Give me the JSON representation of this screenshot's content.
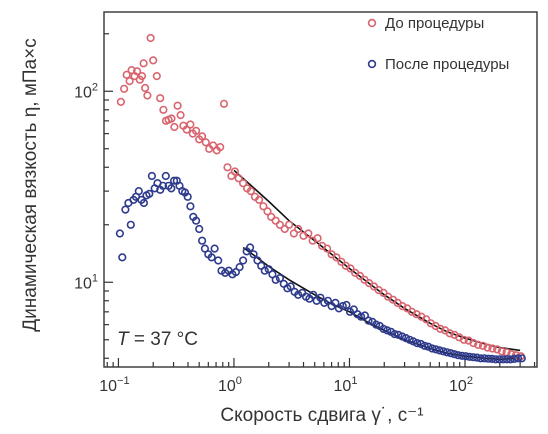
{
  "chart_data": {
    "type": "scatter",
    "x_scale": "log",
    "y_scale": "log",
    "xlim": [
      0.075,
      420
    ],
    "ylim": [
      3.6,
      260
    ],
    "x_ticks": [
      {
        "value": 0.1,
        "base": "10",
        "exp": "−1"
      },
      {
        "value": 1,
        "base": "10",
        "exp": "0"
      },
      {
        "value": 10,
        "base": "10",
        "exp": "1"
      },
      {
        "value": 100,
        "base": "10",
        "exp": "2"
      }
    ],
    "y_ticks": [
      {
        "value": 10,
        "base": "10",
        "exp": "1"
      },
      {
        "value": 100,
        "base": "10",
        "exp": "2"
      }
    ],
    "xlabel": "Скорость сдвига γ˙, с⁻¹",
    "ylabel": "Динамическая вязкость η, мПа×с",
    "annotation": {
      "italic": "T",
      "rest": " = 37 °С"
    },
    "legend_position": "top-right",
    "series": [
      {
        "name": "До процедуры",
        "color": "#d9646e",
        "points": [
          [
            0.105,
            88
          ],
          [
            0.112,
            103
          ],
          [
            0.118,
            122
          ],
          [
            0.125,
            113
          ],
          [
            0.13,
            129
          ],
          [
            0.138,
            120
          ],
          [
            0.145,
            127
          ],
          [
            0.153,
            115
          ],
          [
            0.16,
            120
          ],
          [
            0.165,
            140
          ],
          [
            0.17,
            104
          ],
          [
            0.178,
            95
          ],
          [
            0.19,
            190
          ],
          [
            0.2,
            145
          ],
          [
            0.215,
            120
          ],
          [
            0.23,
            92
          ],
          [
            0.245,
            80
          ],
          [
            0.258,
            70
          ],
          [
            0.272,
            71
          ],
          [
            0.288,
            72
          ],
          [
            0.305,
            65
          ],
          [
            0.325,
            84
          ],
          [
            0.345,
            75
          ],
          [
            0.365,
            66
          ],
          [
            0.39,
            63
          ],
          [
            0.42,
            67
          ],
          [
            0.44,
            60
          ],
          [
            0.47,
            62
          ],
          [
            0.5,
            56
          ],
          [
            0.53,
            58
          ],
          [
            0.57,
            54
          ],
          [
            0.61,
            50
          ],
          [
            0.66,
            52
          ],
          [
            0.71,
            49
          ],
          [
            0.76,
            51
          ],
          [
            0.82,
            86
          ],
          [
            0.88,
            40
          ],
          [
            0.95,
            36
          ],
          [
            1.02,
            38
          ],
          [
            1.1,
            35
          ],
          [
            1.2,
            33
          ],
          [
            1.3,
            31
          ],
          [
            1.4,
            30
          ],
          [
            1.52,
            28
          ],
          [
            1.65,
            27
          ],
          [
            1.8,
            25
          ],
          [
            1.95,
            23.5
          ],
          [
            2.1,
            22
          ],
          [
            2.3,
            21
          ],
          [
            2.5,
            20
          ],
          [
            2.75,
            19
          ],
          [
            3.0,
            20
          ],
          [
            3.3,
            18
          ],
          [
            3.6,
            19
          ],
          [
            4.0,
            17.5
          ],
          [
            4.4,
            18
          ],
          [
            4.8,
            16.5
          ],
          [
            5.3,
            17
          ],
          [
            5.8,
            15.5
          ],
          [
            6.4,
            15
          ],
          [
            7.0,
            14
          ],
          [
            7.7,
            13.5
          ],
          [
            8.5,
            12.8
          ],
          [
            9.3,
            12.2
          ],
          [
            10.2,
            11.8
          ],
          [
            11.2,
            11.2
          ],
          [
            12.3,
            10.8
          ],
          [
            13.5,
            10.3
          ],
          [
            14.8,
            9.9
          ],
          [
            16.3,
            9.5
          ],
          [
            17.9,
            9.1
          ],
          [
            19.7,
            8.8
          ],
          [
            21.6,
            8.4
          ],
          [
            23.8,
            8.1
          ],
          [
            26.1,
            7.8
          ],
          [
            28.7,
            7.5
          ],
          [
            31.6,
            7.3
          ],
          [
            34.7,
            7.0
          ],
          [
            38.1,
            6.8
          ],
          [
            41.9,
            6.6
          ],
          [
            46.1,
            6.4
          ],
          [
            50.6,
            6.1
          ],
          [
            55.6,
            5.9
          ],
          [
            61.1,
            5.7
          ],
          [
            67.2,
            5.6
          ],
          [
            73.8,
            5.4
          ],
          [
            81.1,
            5.3
          ],
          [
            89.1,
            5.15
          ],
          [
            97.9,
            5.0
          ],
          [
            107.6,
            4.95
          ],
          [
            118.3,
            4.8
          ],
          [
            130,
            4.7
          ],
          [
            142.9,
            4.65
          ],
          [
            157,
            4.55
          ],
          [
            172.5,
            4.5
          ],
          [
            189.6,
            4.45
          ],
          [
            208.4,
            4.35
          ],
          [
            229,
            4.3
          ],
          [
            251.7,
            4.2
          ],
          [
            276.6,
            4.15
          ],
          [
            304,
            4.1
          ]
        ]
      },
      {
        "name": "После процедуры",
        "color": "#2e3a8c",
        "points": [
          [
            0.103,
            18
          ],
          [
            0.108,
            13.5
          ],
          [
            0.115,
            24
          ],
          [
            0.122,
            26
          ],
          [
            0.128,
            20
          ],
          [
            0.135,
            27
          ],
          [
            0.142,
            28
          ],
          [
            0.15,
            30
          ],
          [
            0.158,
            27
          ],
          [
            0.166,
            26
          ],
          [
            0.175,
            28.5
          ],
          [
            0.185,
            29
          ],
          [
            0.195,
            36
          ],
          [
            0.206,
            31
          ],
          [
            0.218,
            33
          ],
          [
            0.23,
            30.5
          ],
          [
            0.243,
            32
          ],
          [
            0.257,
            36
          ],
          [
            0.272,
            32
          ],
          [
            0.287,
            31
          ],
          [
            0.303,
            34
          ],
          [
            0.32,
            34
          ],
          [
            0.338,
            32
          ],
          [
            0.357,
            30
          ],
          [
            0.377,
            29.5
          ],
          [
            0.398,
            28
          ],
          [
            0.42,
            25
          ],
          [
            0.445,
            22
          ],
          [
            0.47,
            21
          ],
          [
            0.5,
            19
          ],
          [
            0.53,
            16.5
          ],
          [
            0.56,
            15
          ],
          [
            0.6,
            14
          ],
          [
            0.64,
            13.5
          ],
          [
            0.68,
            15
          ],
          [
            0.73,
            13
          ],
          [
            0.78,
            11.5
          ],
          [
            0.84,
            11.2
          ],
          [
            0.9,
            11.5
          ],
          [
            0.97,
            11
          ],
          [
            1.04,
            11.3
          ],
          [
            1.12,
            12
          ],
          [
            1.2,
            13
          ],
          [
            1.29,
            14.5
          ],
          [
            1.38,
            15.2
          ],
          [
            1.48,
            14
          ],
          [
            1.6,
            13
          ],
          [
            1.72,
            12.2
          ],
          [
            1.85,
            11.5
          ],
          [
            2.0,
            11.7
          ],
          [
            2.15,
            11
          ],
          [
            2.3,
            10.3
          ],
          [
            2.5,
            10.5
          ],
          [
            2.7,
            9.8
          ],
          [
            2.9,
            9.3
          ],
          [
            3.1,
            9.5
          ],
          [
            3.35,
            8.9
          ],
          [
            3.6,
            8.6
          ],
          [
            3.9,
            8.8
          ],
          [
            4.2,
            8.4
          ],
          [
            4.5,
            8.2
          ],
          [
            4.85,
            8.6
          ],
          [
            5.2,
            8.0
          ],
          [
            5.6,
            8.3
          ],
          [
            6.05,
            7.8
          ],
          [
            6.5,
            8.0
          ],
          [
            7.0,
            7.5
          ],
          [
            7.55,
            7.8
          ],
          [
            8.1,
            7.3
          ],
          [
            8.75,
            7.5
          ],
          [
            9.4,
            7.6
          ],
          [
            10.1,
            7.0
          ],
          [
            10.9,
            7.2
          ],
          [
            11.7,
            6.8
          ],
          [
            12.6,
            6.6
          ],
          [
            13.6,
            6.7
          ],
          [
            14.6,
            6.3
          ],
          [
            15.8,
            6.2
          ],
          [
            17,
            6.0
          ],
          [
            18.3,
            5.9
          ],
          [
            19.7,
            5.7
          ],
          [
            21.2,
            5.6
          ],
          [
            22.9,
            5.5
          ],
          [
            24.6,
            5.35
          ],
          [
            26.5,
            5.3
          ],
          [
            28.6,
            5.2
          ],
          [
            30.8,
            5.1
          ],
          [
            33.2,
            5.0
          ],
          [
            35.7,
            4.9
          ],
          [
            38.5,
            4.8
          ],
          [
            41.5,
            4.75
          ],
          [
            44.7,
            4.65
          ],
          [
            48.1,
            4.6
          ],
          [
            51.9,
            4.5
          ],
          [
            55.9,
            4.45
          ],
          [
            60.2,
            4.4
          ],
          [
            64.9,
            4.35
          ],
          [
            69.9,
            4.3
          ],
          [
            75.3,
            4.25
          ],
          [
            81.1,
            4.2
          ],
          [
            87.4,
            4.15
          ],
          [
            94.2,
            4.12
          ],
          [
            101.5,
            4.1
          ],
          [
            109.3,
            4.07
          ],
          [
            117.8,
            4.05
          ],
          [
            126.9,
            4.03
          ],
          [
            136.7,
            4.0
          ],
          [
            147.3,
            4.0
          ],
          [
            158.7,
            3.98
          ],
          [
            171,
            3.97
          ],
          [
            184.2,
            3.95
          ],
          [
            198.5,
            3.95
          ],
          [
            213.8,
            3.95
          ],
          [
            230.4,
            3.95
          ],
          [
            248.2,
            3.95
          ],
          [
            267.4,
            3.97
          ],
          [
            288.1,
            4.0
          ],
          [
            310.4,
            4.0
          ]
        ]
      }
    ],
    "fits": [
      {
        "points": [
          [
            1.0,
            38.5
          ],
          [
            1.5,
            31
          ],
          [
            2,
            26.5
          ],
          [
            3,
            21
          ],
          [
            5,
            16.5
          ],
          [
            7,
            14
          ],
          [
            10,
            11.8
          ],
          [
            15,
            9.8
          ],
          [
            20,
            8.6
          ],
          [
            30,
            7.3
          ],
          [
            50,
            6.1
          ],
          [
            70,
            5.5
          ],
          [
            100,
            5.1
          ],
          [
            150,
            4.75
          ],
          [
            200,
            4.55
          ],
          [
            300,
            4.4
          ]
        ]
      },
      {
        "points": [
          [
            1.2,
            15.2
          ],
          [
            1.5,
            13.8
          ],
          [
            2,
            12.1
          ],
          [
            3,
            10.3
          ],
          [
            5,
            8.6
          ],
          [
            7,
            7.7
          ],
          [
            10,
            7.0
          ],
          [
            15,
            6.1
          ],
          [
            20,
            5.6
          ],
          [
            30,
            5.0
          ],
          [
            50,
            4.5
          ],
          [
            70,
            4.25
          ],
          [
            100,
            4.1
          ],
          [
            150,
            4.0
          ],
          [
            200,
            3.95
          ],
          [
            300,
            4.0
          ]
        ]
      }
    ]
  }
}
